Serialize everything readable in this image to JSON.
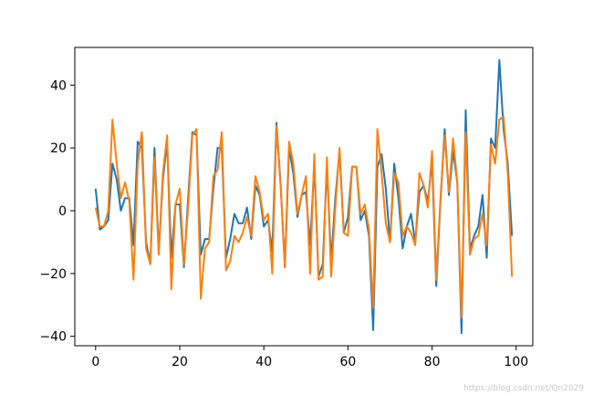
{
  "chart_data": {
    "type": "line",
    "title": "",
    "xlabel": "",
    "ylabel": "",
    "xlim": [
      -4.95,
      103.95
    ],
    "ylim": [
      -43.0,
      52.0
    ],
    "x_ticks": [
      0,
      20,
      40,
      60,
      80,
      100
    ],
    "y_ticks": [
      -40,
      -20,
      0,
      20,
      40
    ],
    "grid": false,
    "legend": "none",
    "x": [
      0,
      1,
      2,
      3,
      4,
      5,
      6,
      7,
      8,
      9,
      10,
      11,
      12,
      13,
      14,
      15,
      16,
      17,
      18,
      19,
      20,
      21,
      22,
      23,
      24,
      25,
      26,
      27,
      28,
      29,
      30,
      31,
      32,
      33,
      34,
      35,
      36,
      37,
      38,
      39,
      40,
      41,
      42,
      43,
      44,
      45,
      46,
      47,
      48,
      49,
      50,
      51,
      52,
      53,
      54,
      55,
      56,
      57,
      58,
      59,
      60,
      61,
      62,
      63,
      64,
      65,
      66,
      67,
      68,
      69,
      70,
      71,
      72,
      73,
      74,
      75,
      76,
      77,
      78,
      79,
      80,
      81,
      82,
      83,
      84,
      85,
      86,
      87,
      88,
      89,
      90,
      91,
      92,
      93,
      94,
      95,
      96,
      97,
      98,
      99
    ],
    "series": [
      {
        "color": "#1f77b4",
        "values": [
          7,
          -6,
          -5,
          -3,
          15,
          10,
          0,
          4,
          4,
          -11,
          22,
          20,
          -10,
          -17,
          20,
          -13,
          10,
          22,
          -15,
          2,
          2,
          -18,
          4,
          25,
          24,
          -14,
          -9,
          -9,
          7,
          20,
          20,
          -15,
          -9,
          -1,
          -4,
          -4,
          1,
          -9,
          8,
          5,
          -5,
          -3,
          -13,
          28,
          8,
          -18,
          20,
          12,
          -2,
          5,
          6,
          -11,
          15,
          -21,
          -17,
          14,
          -16,
          4,
          19,
          -7,
          -2,
          14,
          14,
          -3,
          0,
          -8,
          -38,
          14,
          18,
          7,
          -10,
          15,
          4,
          -12,
          -5,
          -1,
          -10,
          6,
          8,
          3,
          16,
          -24,
          3,
          26,
          5,
          19,
          9,
          -39,
          32,
          -12,
          -8,
          -5,
          5,
          -15,
          23,
          20,
          48,
          26,
          15,
          -8
        ]
      },
      {
        "color": "#ff7f0e",
        "values": [
          1,
          -5,
          -5,
          0,
          29,
          15,
          4,
          9,
          3,
          -22,
          15,
          25,
          -12,
          -17,
          17,
          -14,
          12,
          24,
          -25,
          2,
          7,
          -17,
          1,
          24,
          26,
          -28,
          -12,
          -10,
          11,
          13,
          25,
          -19,
          -16,
          -8,
          -10,
          -7,
          -2,
          -8,
          11,
          6,
          -3,
          -1,
          -20,
          27,
          8,
          -18,
          22,
          15,
          -1,
          5,
          11,
          -20,
          18,
          -22,
          -21,
          17,
          -21,
          1,
          20,
          -7,
          -8,
          14,
          14,
          -1,
          2,
          -6,
          -31,
          26,
          12,
          -4,
          -10,
          12,
          9,
          -8,
          -5,
          -7,
          -11,
          12,
          8,
          1,
          19,
          -22,
          4,
          24,
          6,
          23,
          9,
          -34,
          25,
          -14,
          -9,
          -8,
          -1,
          -11,
          21,
          15,
          29,
          30,
          12,
          -21
        ]
      }
    ]
  },
  "watermark": "https://blog.csdn.net/Qn2029"
}
